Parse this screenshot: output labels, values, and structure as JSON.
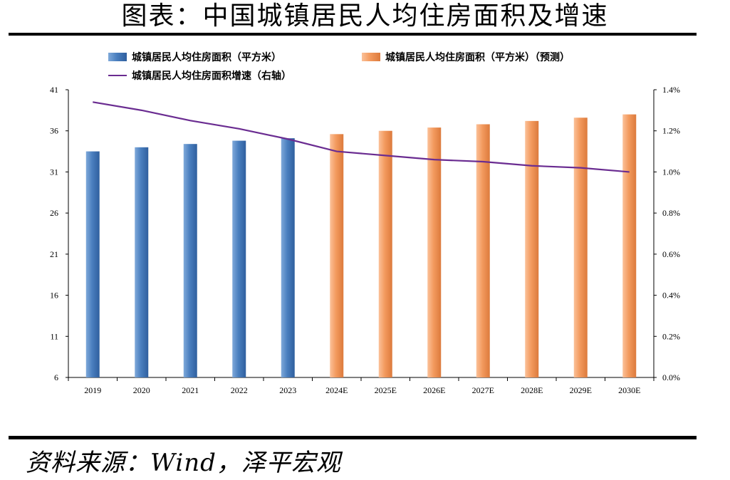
{
  "title": "图表：中国城镇居民人均住房面积及增速",
  "source": "资料来源：Wind，泽平宏观",
  "colors": {
    "actual_bar": "#4a7fbf",
    "forecast_bar": "#f39a5e",
    "growth_line": "#6a2c91"
  },
  "chart_data": {
    "type": "bar",
    "categories": [
      "2019",
      "2020",
      "2021",
      "2022",
      "2023",
      "2024E",
      "2025E",
      "2026E",
      "2027E",
      "2028E",
      "2029E",
      "2030E"
    ],
    "series": [
      {
        "name": "城镇居民人均住房面积（平方米）",
        "type": "bar",
        "axis": "left",
        "values": [
          33.5,
          34.0,
          34.4,
          34.8,
          35.1,
          null,
          null,
          null,
          null,
          null,
          null,
          null
        ]
      },
      {
        "name": "城镇居民人均住房面积（平方米）（预测）",
        "type": "bar",
        "axis": "left",
        "values": [
          null,
          null,
          null,
          null,
          null,
          35.6,
          36.0,
          36.4,
          36.8,
          37.2,
          37.6,
          38.0
        ]
      },
      {
        "name": "城镇居民人均住房面积增速（右轴）",
        "type": "line",
        "axis": "right",
        "values": [
          1.34,
          1.3,
          1.25,
          1.21,
          1.16,
          1.1,
          1.08,
          1.06,
          1.05,
          1.03,
          1.02,
          1.0
        ]
      }
    ],
    "y_left": {
      "range": [
        6,
        41
      ],
      "ticks": [
        "6",
        "11",
        "16",
        "21",
        "26",
        "31",
        "36",
        "41"
      ]
    },
    "y_right": {
      "range": [
        0,
        1.4
      ],
      "ticks": [
        "0.0%",
        "0.2%",
        "0.4%",
        "0.6%",
        "0.8%",
        "1.0%",
        "1.2%",
        "1.4%"
      ]
    },
    "legend": [
      "城镇居民人均住房面积（平方米）",
      "城镇居民人均住房面积（平方米）（预测）",
      "城镇居民人均住房面积增速（右轴）"
    ],
    "legend_position": "top",
    "grid": false
  }
}
